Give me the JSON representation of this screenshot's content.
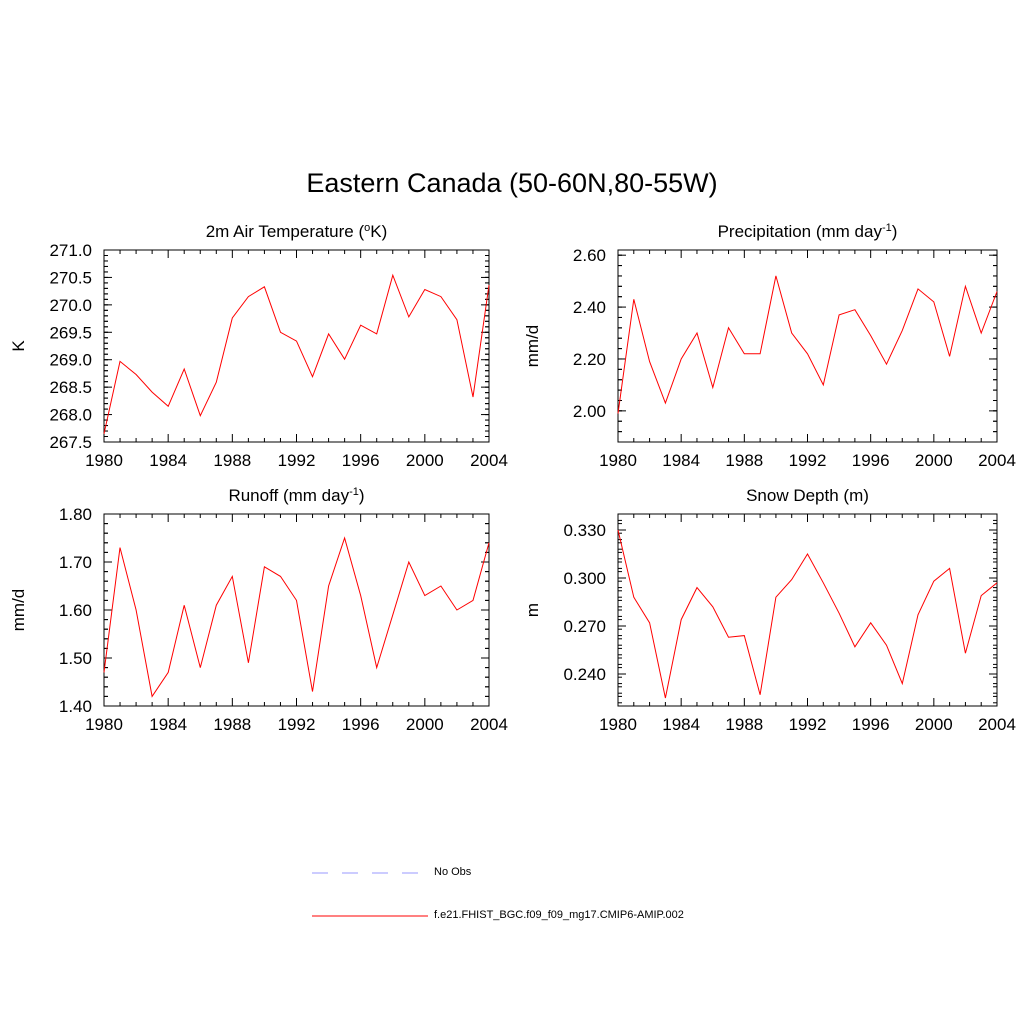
{
  "title": "Eastern Canada (50-60N,80-55W)",
  "legend": {
    "items": [
      {
        "label": "No Obs",
        "color": "#9999ff",
        "style": "dashed"
      },
      {
        "label": "f.e21.FHIST_BGC.f09_f09_mg17.CMIP6-AMIP.002",
        "color": "#ff0000",
        "style": "solid"
      }
    ]
  },
  "colors": {
    "series": "#ff0000",
    "no_obs": "#9999ff",
    "axis": "#000000"
  },
  "chart_data": [
    {
      "type": "line",
      "title": "2m Air Temperature (",
      "title_sup": "o",
      "title_after": "K)",
      "ylabel": "K",
      "xlim": [
        1980,
        2004
      ],
      "ylim": [
        267.5,
        271.0
      ],
      "xticks": [
        1980,
        1984,
        1988,
        1992,
        1996,
        2000,
        2004
      ],
      "yticks": [
        "267.5",
        "268.0",
        "268.5",
        "269.0",
        "269.5",
        "270.0",
        "270.5",
        "271.0"
      ],
      "series": [
        {
          "name": "f.e21.FHIST_BGC.f09_f09_mg17.CMIP6-AMIP.002",
          "x": [
            1980,
            1981,
            1982,
            1983,
            1984,
            1985,
            1986,
            1987,
            1988,
            1989,
            1990,
            1991,
            1992,
            1993,
            1994,
            1995,
            1996,
            1997,
            1998,
            1999,
            2000,
            2001,
            2002,
            2003,
            2004
          ],
          "values": [
            267.65,
            268.97,
            268.73,
            268.41,
            268.15,
            268.83,
            267.98,
            268.59,
            269.76,
            270.15,
            270.33,
            269.5,
            269.34,
            268.69,
            269.47,
            269.01,
            269.63,
            269.47,
            270.54,
            269.78,
            270.28,
            270.15,
            269.73,
            268.32,
            270.36
          ]
        }
      ]
    },
    {
      "type": "line",
      "title": "Precipitation (mm day",
      "title_sup": "-1",
      "title_after": ")",
      "ylabel": "mm/d",
      "xlim": [
        1980,
        2004
      ],
      "ylim": [
        1.88,
        2.62
      ],
      "xticks": [
        1980,
        1984,
        1988,
        1992,
        1996,
        2000,
        2004
      ],
      "yticks": [
        "2.00",
        "2.20",
        "2.40",
        "2.60"
      ],
      "series": [
        {
          "name": "f.e21.FHIST_BGC.f09_f09_mg17.CMIP6-AMIP.002",
          "x": [
            1980,
            1981,
            1982,
            1983,
            1984,
            1985,
            1986,
            1987,
            1988,
            1989,
            1990,
            1991,
            1992,
            1993,
            1994,
            1995,
            1996,
            1997,
            1998,
            1999,
            2000,
            2001,
            2002,
            2003,
            2004
          ],
          "values": [
            1.99,
            2.43,
            2.19,
            2.03,
            2.2,
            2.3,
            2.09,
            2.32,
            2.22,
            2.22,
            2.52,
            2.3,
            2.22,
            2.1,
            2.37,
            2.39,
            2.29,
            2.18,
            2.31,
            2.47,
            2.42,
            2.21,
            2.48,
            2.3,
            2.46
          ]
        }
      ]
    },
    {
      "type": "line",
      "title": "Runoff (mm day",
      "title_sup": "-1",
      "title_after": ")",
      "ylabel": "mm/d",
      "xlim": [
        1980,
        2004
      ],
      "ylim": [
        1.4,
        1.8
      ],
      "xticks": [
        1980,
        1984,
        1988,
        1992,
        1996,
        2000,
        2004
      ],
      "yticks": [
        "1.40",
        "1.50",
        "1.60",
        "1.70",
        "1.80"
      ],
      "series": [
        {
          "name": "f.e21.FHIST_BGC.f09_f09_mg17.CMIP6-AMIP.002",
          "x": [
            1980,
            1981,
            1982,
            1983,
            1984,
            1985,
            1986,
            1987,
            1988,
            1989,
            1990,
            1991,
            1992,
            1993,
            1994,
            1995,
            1996,
            1997,
            1998,
            1999,
            2000,
            2001,
            2002,
            2003,
            2004
          ],
          "values": [
            1.47,
            1.73,
            1.6,
            1.42,
            1.47,
            1.61,
            1.48,
            1.61,
            1.67,
            1.49,
            1.69,
            1.67,
            1.62,
            1.43,
            1.65,
            1.75,
            1.63,
            1.48,
            1.59,
            1.7,
            1.63,
            1.65,
            1.6,
            1.62,
            1.74
          ]
        }
      ]
    },
    {
      "type": "line",
      "title": "Snow Depth (m)",
      "title_sup": "",
      "title_after": "",
      "ylabel": "m",
      "xlim": [
        1980,
        2004
      ],
      "ylim": [
        0.22,
        0.34
      ],
      "xticks": [
        1980,
        1984,
        1988,
        1992,
        1996,
        2000,
        2004
      ],
      "yticks": [
        "0.240",
        "0.270",
        "0.300",
        "0.330"
      ],
      "series": [
        {
          "name": "f.e21.FHIST_BGC.f09_f09_mg17.CMIP6-AMIP.002",
          "x": [
            1980,
            1981,
            1982,
            1983,
            1984,
            1985,
            1986,
            1987,
            1988,
            1989,
            1990,
            1991,
            1992,
            1993,
            1994,
            1995,
            1996,
            1997,
            1998,
            1999,
            2000,
            2001,
            2002,
            2003,
            2004
          ],
          "values": [
            0.33,
            0.288,
            0.272,
            0.225,
            0.274,
            0.294,
            0.282,
            0.263,
            0.264,
            0.227,
            0.288,
            0.299,
            0.315,
            0.297,
            0.278,
            0.257,
            0.272,
            0.258,
            0.234,
            0.277,
            0.298,
            0.306,
            0.253,
            0.289,
            0.297
          ]
        }
      ]
    }
  ]
}
